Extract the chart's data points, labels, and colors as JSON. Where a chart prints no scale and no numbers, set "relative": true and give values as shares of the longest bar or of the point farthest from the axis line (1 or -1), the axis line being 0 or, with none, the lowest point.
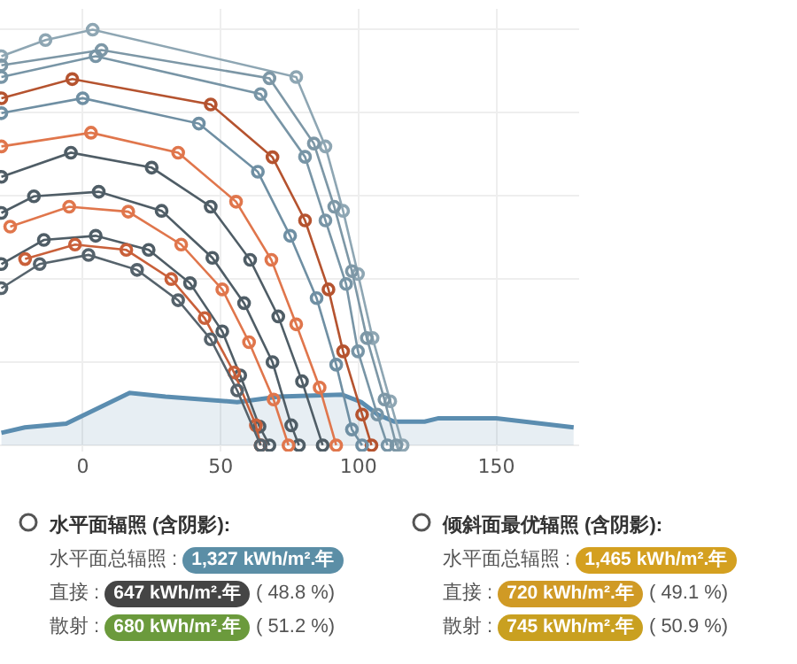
{
  "chart_data": [
    {
      "type": "line",
      "relative": true,
      "xlim": [
        -30,
        180
      ],
      "xticks": [
        0,
        50,
        100,
        150
      ],
      "grid": true,
      "marker": "circle",
      "line_style": "solid",
      "series": [
        {
          "type": "area",
          "color": "#5b8db0",
          "x": [
            -29.5,
            -21,
            -6,
            17,
            30,
            56,
            71,
            94,
            101,
            107,
            113,
            124,
            129,
            150,
            178
          ],
          "values": [
            0.03,
            0.043,
            0.052,
            0.126,
            0.117,
            0.104,
            0.117,
            0.122,
            0.104,
            0.074,
            0.057,
            0.057,
            0.065,
            0.065,
            0.043
          ],
          "marker": "none"
        },
        {
          "color": "#8ea6b3",
          "x": [
            -29.5,
            -13.5,
            3.6,
            77.4,
            88,
            94.4,
            99.8,
            105.1,
            111.5,
            116
          ],
          "values": [
            0.936,
            0.975,
            1,
            0.886,
            0.719,
            0.564,
            0.412,
            0.258,
            0.106,
            0
          ]
        },
        {
          "color": "#7d97a6",
          "x": [
            -29.5,
            6.8,
            67.7,
            83.8,
            91.2,
            97.6,
            103,
            109.4,
            113.7
          ],
          "values": [
            0.914,
            0.951,
            0.883,
            0.726,
            0.574,
            0.419,
            0.258,
            0.11,
            0
          ]
        },
        {
          "color": "#7895a6",
          "x": [
            -29.5,
            4.7,
            64.5,
            80.6,
            88,
            95.5,
            99.8,
            106.8,
            110.5
          ],
          "values": [
            0.886,
            0.936,
            0.845,
            0.694,
            0.541,
            0.388,
            0.226,
            0.074,
            0
          ]
        },
        {
          "color": "#b5532f",
          "x": [
            -29.5,
            -3.8,
            46.4,
            68.8,
            80.6,
            89.1,
            94.4,
            101.3,
            104.7
          ],
          "values": [
            0.835,
            0.881,
            0.82,
            0.693,
            0.541,
            0.375,
            0.226,
            0.074,
            0
          ]
        },
        {
          "color": "#6f8fa3",
          "x": [
            -29.5,
            0,
            42.1,
            63.5,
            75.2,
            84.8,
            91.9,
            97.6,
            101.3
          ],
          "values": [
            0.799,
            0.835,
            0.774,
            0.658,
            0.504,
            0.354,
            0.194,
            0.038,
            0
          ]
        },
        {
          "color": "#e0764c",
          "x": [
            -29.5,
            3,
            34.6,
            55.6,
            68.4,
            77.4,
            85.9,
            91.9
          ],
          "values": [
            0.719,
            0.752,
            0.704,
            0.586,
            0.446,
            0.291,
            0.139,
            0
          ]
        },
        {
          "color": "#4f5d66",
          "x": [
            -29.5,
            -4.3,
            25,
            46.4,
            60.7,
            70.9,
            79.5,
            87
          ],
          "values": [
            0.646,
            0.704,
            0.668,
            0.574,
            0.446,
            0.31,
            0.154,
            0
          ]
        },
        {
          "color": "#4f5d66",
          "x": [
            -29.5,
            -17.7,
            5.8,
            28.6,
            47,
            58.5,
            68.8,
            75.6,
            78.4
          ],
          "values": [
            0.559,
            0.599,
            0.61,
            0.564,
            0.451,
            0.342,
            0.2,
            0.048,
            0
          ]
        },
        {
          "color": "#e0764c",
          "x": [
            -26.3,
            -4.9,
            16.5,
            35.7,
            50.6,
            60.3,
            69.2,
            74.6
          ],
          "values": [
            0.526,
            0.574,
            0.562,
            0.483,
            0.375,
            0.248,
            0.11,
            0
          ]
        },
        {
          "color": "#4f5d66",
          "x": [
            -29.5,
            -14.1,
            4.7,
            23.9,
            38.9,
            50.6,
            57.1,
            64.1,
            67.7
          ],
          "values": [
            0.436,
            0.494,
            0.504,
            0.47,
            0.39,
            0.274,
            0.168,
            0.045,
            0
          ]
        },
        {
          "color": "#c9603a",
          "x": [
            -20.9,
            -2.8,
            15.8,
            32.1,
            44.2,
            54.9,
            62.8,
            64.5
          ],
          "values": [
            0.448,
            0.483,
            0.47,
            0.4,
            0.306,
            0.175,
            0.048,
            0
          ]
        },
        {
          "color": "#56636c",
          "x": [
            -29.5,
            -15.6,
            2.1,
            19.7,
            34.6,
            46.4,
            56,
            64.5
          ],
          "values": [
            0.378,
            0.436,
            0.458,
            0.422,
            0.349,
            0.255,
            0.132,
            0
          ]
        }
      ]
    },
    {
      "type": "other",
      "annotations": [
        "水平面辐照 (含阴影):",
        "水平面总辐照 :",
        "1,327 kWh/m².年",
        "直接 :",
        "647 kWh/m².年",
        "( 48.8 %)",
        "散射 :",
        "680 kWh/m².年",
        "( 51.2 %)",
        "倾斜面最优辐照 (含阴影):",
        "水平面总辐照 :",
        "1,465 kWh/m².年",
        "直接 :",
        "720 kWh/m².年",
        "( 49.1 %)",
        "散射 :",
        "745 kWh/m².年",
        "( 50.9 %)"
      ],
      "colors": [
        null,
        null,
        "#5b8ea6",
        null,
        "#454545",
        null,
        null,
        "#6b9a3c",
        null,
        null,
        null,
        "#d4a020",
        null,
        "#d09a25",
        null,
        null,
        "#c9a020",
        null
      ]
    }
  ]
}
